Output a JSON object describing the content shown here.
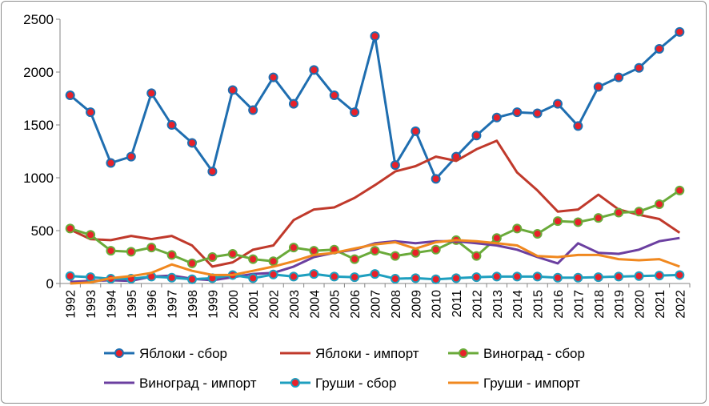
{
  "chart_data": {
    "type": "line",
    "title": "",
    "xlabel": "",
    "ylabel": "",
    "ylim": [
      0,
      2500
    ],
    "yticks": [
      0,
      500,
      1000,
      1500,
      2000,
      2500
    ],
    "grid": false,
    "legend_position": "bottom",
    "x": [
      1992,
      1993,
      1994,
      1995,
      1996,
      1997,
      1998,
      1999,
      2000,
      2001,
      2002,
      2003,
      2004,
      2005,
      2006,
      2007,
      2008,
      2009,
      2010,
      2011,
      2012,
      2013,
      2014,
      2015,
      2016,
      2017,
      2018,
      2019,
      2020,
      2021,
      2022
    ],
    "series": [
      {
        "name": "Яблоки - сбор",
        "color": "#1f6eb0",
        "marker": true,
        "values": [
          1780,
          1620,
          1140,
          1200,
          1800,
          1500,
          1330,
          1060,
          1830,
          1640,
          1950,
          1700,
          2020,
          1780,
          1620,
          2340,
          1120,
          1440,
          990,
          1200,
          1400,
          1570,
          1620,
          1610,
          1700,
          1490,
          1860,
          1950,
          2040,
          2220,
          2380
        ]
      },
      {
        "name": "Яблоки - импорт",
        "color": "#c0392b",
        "marker": false,
        "values": [
          510,
          420,
          410,
          450,
          420,
          450,
          360,
          160,
          200,
          320,
          360,
          600,
          700,
          720,
          810,
          930,
          1060,
          1110,
          1200,
          1160,
          1270,
          1350,
          1050,
          880,
          680,
          700,
          840,
          700,
          650,
          610,
          480
        ]
      },
      {
        "name": "Виноград - сбор",
        "color": "#6aaa3a",
        "marker": true,
        "values": [
          520,
          460,
          310,
          300,
          340,
          270,
          190,
          250,
          280,
          230,
          210,
          340,
          310,
          320,
          230,
          310,
          260,
          290,
          320,
          410,
          260,
          430,
          520,
          470,
          590,
          580,
          620,
          670,
          680,
          750,
          880
        ]
      },
      {
        "name": "Виноград - импорт",
        "color": "#6b3fa0",
        "marker": false,
        "values": [
          15,
          25,
          30,
          25,
          65,
          75,
          45,
          30,
          60,
          90,
          100,
          160,
          250,
          290,
          320,
          380,
          400,
          380,
          400,
          400,
          380,
          360,
          320,
          250,
          190,
          380,
          290,
          280,
          320,
          400,
          430
        ]
      },
      {
        "name": "Груши - сбор",
        "color": "#1e9fbf",
        "marker": true,
        "values": [
          70,
          60,
          45,
          45,
          65,
          55,
          40,
          50,
          80,
          50,
          85,
          65,
          90,
          65,
          60,
          90,
          45,
          50,
          40,
          50,
          60,
          65,
          65,
          65,
          55,
          55,
          60,
          65,
          70,
          75,
          80
        ]
      },
      {
        "name": "Груши - импорт",
        "color": "#f0881f",
        "marker": false,
        "values": [
          0,
          10,
          50,
          70,
          100,
          180,
          120,
          80,
          80,
          120,
          160,
          210,
          270,
          290,
          330,
          370,
          390,
          330,
          390,
          410,
          400,
          380,
          360,
          260,
          250,
          270,
          270,
          230,
          220,
          230,
          160
        ]
      }
    ]
  }
}
